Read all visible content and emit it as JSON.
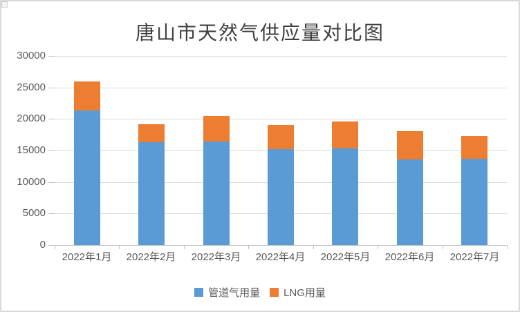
{
  "chart_data": {
    "type": "bar",
    "stacked": true,
    "title": "唐山市天然气供应量对比图",
    "categories": [
      "2022年1月",
      "2022年2月",
      "2022年3月",
      "2022年4月",
      "2022年5月",
      "2022年6月",
      "2022年7月"
    ],
    "series": [
      {
        "key": "pipeline-gas",
        "name": "管道气用量",
        "color": "#5B9BD5",
        "values": [
          21300,
          16300,
          16400,
          15200,
          15300,
          13600,
          13700
        ]
      },
      {
        "key": "lng",
        "name": "LNG用量",
        "color": "#ED7D31",
        "values": [
          4700,
          2900,
          4100,
          3900,
          4300,
          4500,
          3600
        ]
      }
    ],
    "totals": [
      26000,
      19200,
      20500,
      19100,
      19600,
      18100,
      17300
    ],
    "xlabel": "",
    "ylabel": "",
    "ylim": [
      0,
      30000
    ],
    "yticks": [
      0,
      5000,
      10000,
      15000,
      20000,
      25000,
      30000
    ],
    "grid": true,
    "legend_position": "bottom",
    "colors": {
      "gridline": "#D9D9D9",
      "axis_line": "#BFBFBF",
      "tick_label": "#595959",
      "title_text": "#404040",
      "background": "#FFFFFF",
      "frame_border": "#D9D9D9"
    }
  }
}
